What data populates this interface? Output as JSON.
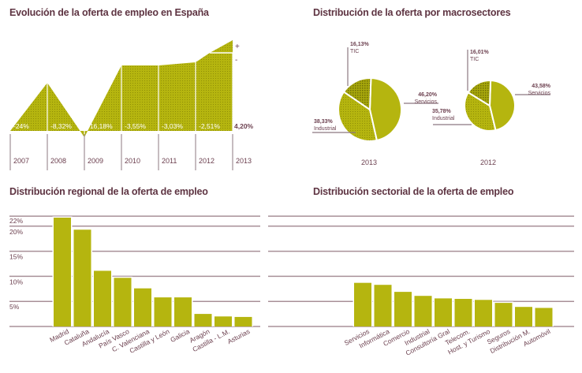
{
  "colors": {
    "fill": "#b5b50f",
    "fill_dark": "#9a9a08",
    "title": "#5e3442",
    "axis": "#8c7880",
    "label": "#6b3f4e",
    "white": "#ffffff"
  },
  "chart_data": [
    {
      "type": "area",
      "title": "Evolución de la oferta de empleo en España",
      "categories": [
        "2007",
        "2008",
        "2009",
        "2010",
        "2011",
        "2012",
        "2013"
      ],
      "value_labels": [
        "-24%",
        "-8,32%",
        "-16,18%",
        "-3,55%",
        "-3,03%",
        "-2,51%",
        "4,20%"
      ],
      "values": [
        -24,
        -8.32,
        -16.18,
        -3.55,
        -3.03,
        -2.51,
        4.2
      ],
      "legend": {
        "plus": "+",
        "minus": "-"
      },
      "legend_placement": "right"
    },
    {
      "type": "pie",
      "title": "Distribución de la oferta por macrosectores",
      "pies": [
        {
          "label": "2013",
          "slices": [
            {
              "name": "Servicios",
              "value": 46.2,
              "label": "46,20%"
            },
            {
              "name": "Industrial",
              "value": 38.33,
              "label": "38,33%"
            },
            {
              "name": "TIC",
              "value": 16.13,
              "label": "16,13%"
            }
          ]
        },
        {
          "label": "2012",
          "slices": [
            {
              "name": "Servicios",
              "value": 43.58,
              "label": "43,58%"
            },
            {
              "name": "Industrial",
              "value": 35.78,
              "label": "35,78%"
            },
            {
              "name": "TIC",
              "value": 16.01,
              "label": "16,01%"
            }
          ]
        }
      ]
    },
    {
      "type": "bar",
      "title": "Distribución regional de la oferta de empleo",
      "categories": [
        "Madrid",
        "Cataluña",
        "Andalucía",
        "País Vasco",
        "C. Valenciana",
        "Castilla y León",
        "Galicia",
        "Aragón",
        "Castilla - L.M.",
        "Asturias"
      ],
      "values": [
        21.7,
        19.3,
        11.1,
        9.7,
        7.6,
        5.8,
        5.8,
        2.5,
        2.0,
        1.9
      ],
      "ylim": [
        0,
        22
      ],
      "yticks": [
        5,
        10,
        15,
        20,
        22
      ],
      "ytick_labels": [
        "5%",
        "10%",
        "15%",
        "20%",
        "22%"
      ],
      "grid": true,
      "xlabel": "",
      "ylabel": ""
    },
    {
      "type": "bar",
      "title": "Distribución sectorial de la oferta de empleo",
      "categories": [
        "Servicios",
        "Informática",
        "Comercio",
        "Industrial",
        "Consultoría Gral",
        "Telecom.",
        "Host. y Turismo",
        "Seguros",
        "Distribución M.",
        "Automóvil"
      ],
      "values": [
        8.7,
        8.3,
        6.9,
        6.1,
        5.6,
        5.5,
        5.3,
        4.7,
        3.9,
        3.7
      ],
      "ylim": [
        0,
        22
      ],
      "yticks": [
        5,
        10,
        15,
        20,
        22
      ],
      "grid": true,
      "xlabel": "",
      "ylabel": ""
    }
  ]
}
